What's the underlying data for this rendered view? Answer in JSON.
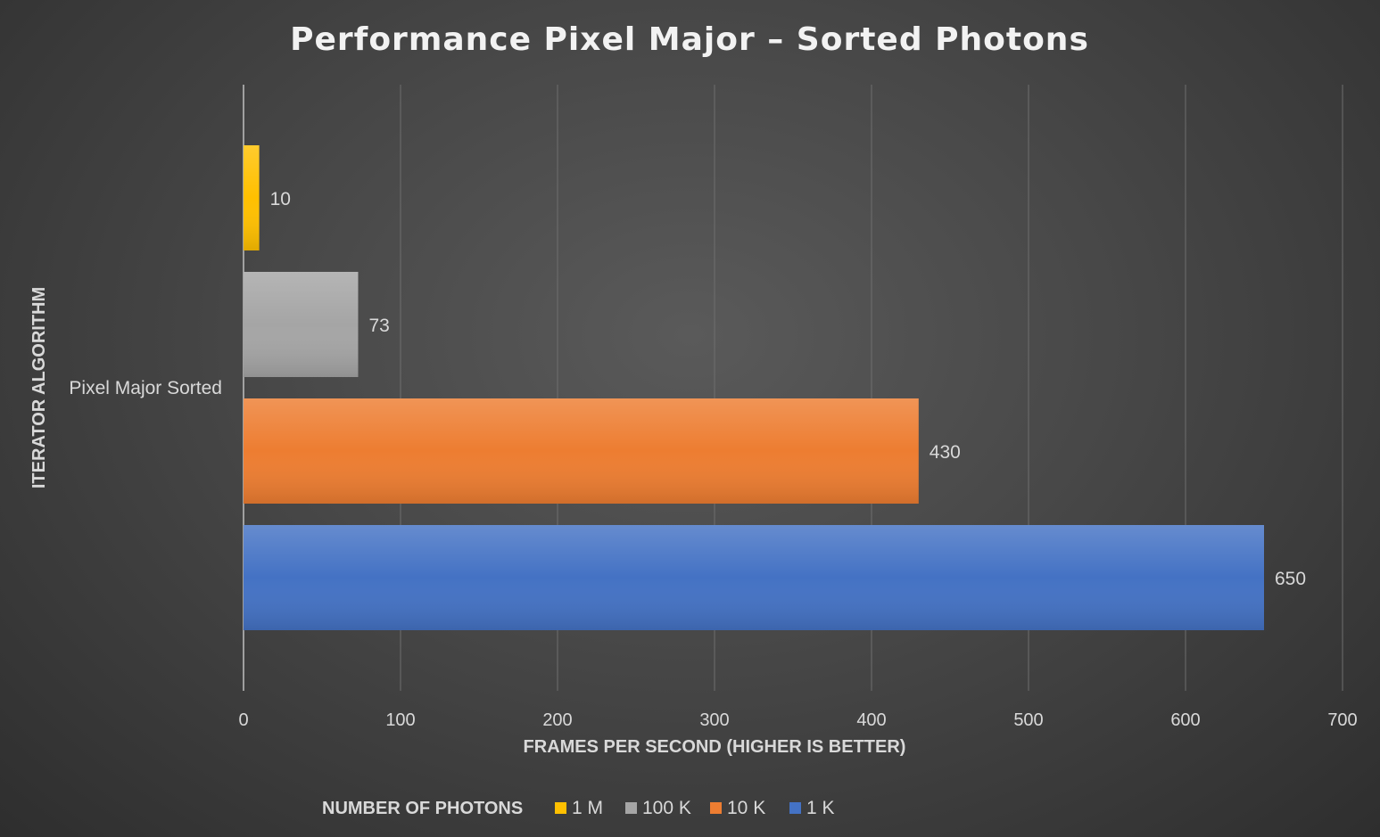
{
  "chart_data": {
    "type": "bar",
    "orientation": "horizontal",
    "title": "Performance Pixel Major – Sorted Photons",
    "categories": [
      "Pixel Major Sorted"
    ],
    "series": [
      {
        "name": "1 M",
        "values": [
          10
        ],
        "color": "#ffc000"
      },
      {
        "name": "100 K",
        "values": [
          73
        ],
        "color": "#a5a5a5"
      },
      {
        "name": "10 K",
        "values": [
          430
        ],
        "color": "#ed7d31"
      },
      {
        "name": "1 K",
        "values": [
          650
        ],
        "color": "#4472c4"
      }
    ],
    "xlabel": "FRAMES PER SECOND (HIGHER IS BETTER)",
    "ylabel": "ITERATOR ALGORITHM",
    "xlim": [
      0,
      700
    ],
    "xticks": [
      0,
      100,
      200,
      300,
      400,
      500,
      600,
      700
    ],
    "grid": true,
    "legend": {
      "title": "NUMBER OF PHOTONS",
      "position": "bottom"
    }
  }
}
